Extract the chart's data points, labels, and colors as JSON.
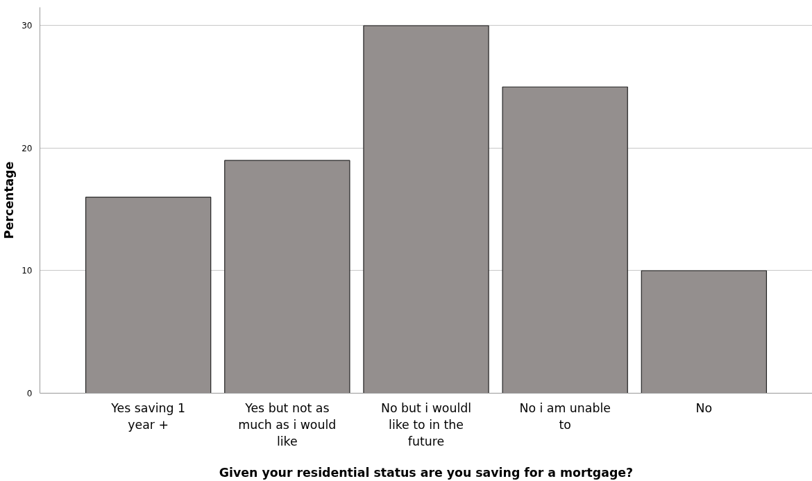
{
  "chart_data": {
    "type": "bar",
    "xlabel": "Given your residential status are you saving for a mortgage?",
    "ylabel": "Percentage",
    "categories": [
      "Yes saving 1\nyear +",
      "Yes but not as\nmuch as i would\nlike",
      "No but i wouldl\nlike to in the\nfuture",
      "No i am unable\nto",
      "No"
    ],
    "values": [
      16,
      19,
      30,
      25,
      10
    ],
    "color": "#948f8e",
    "ylim": [
      0,
      31.5
    ],
    "yticks": [
      0,
      10,
      20,
      30
    ],
    "grid": "y"
  }
}
